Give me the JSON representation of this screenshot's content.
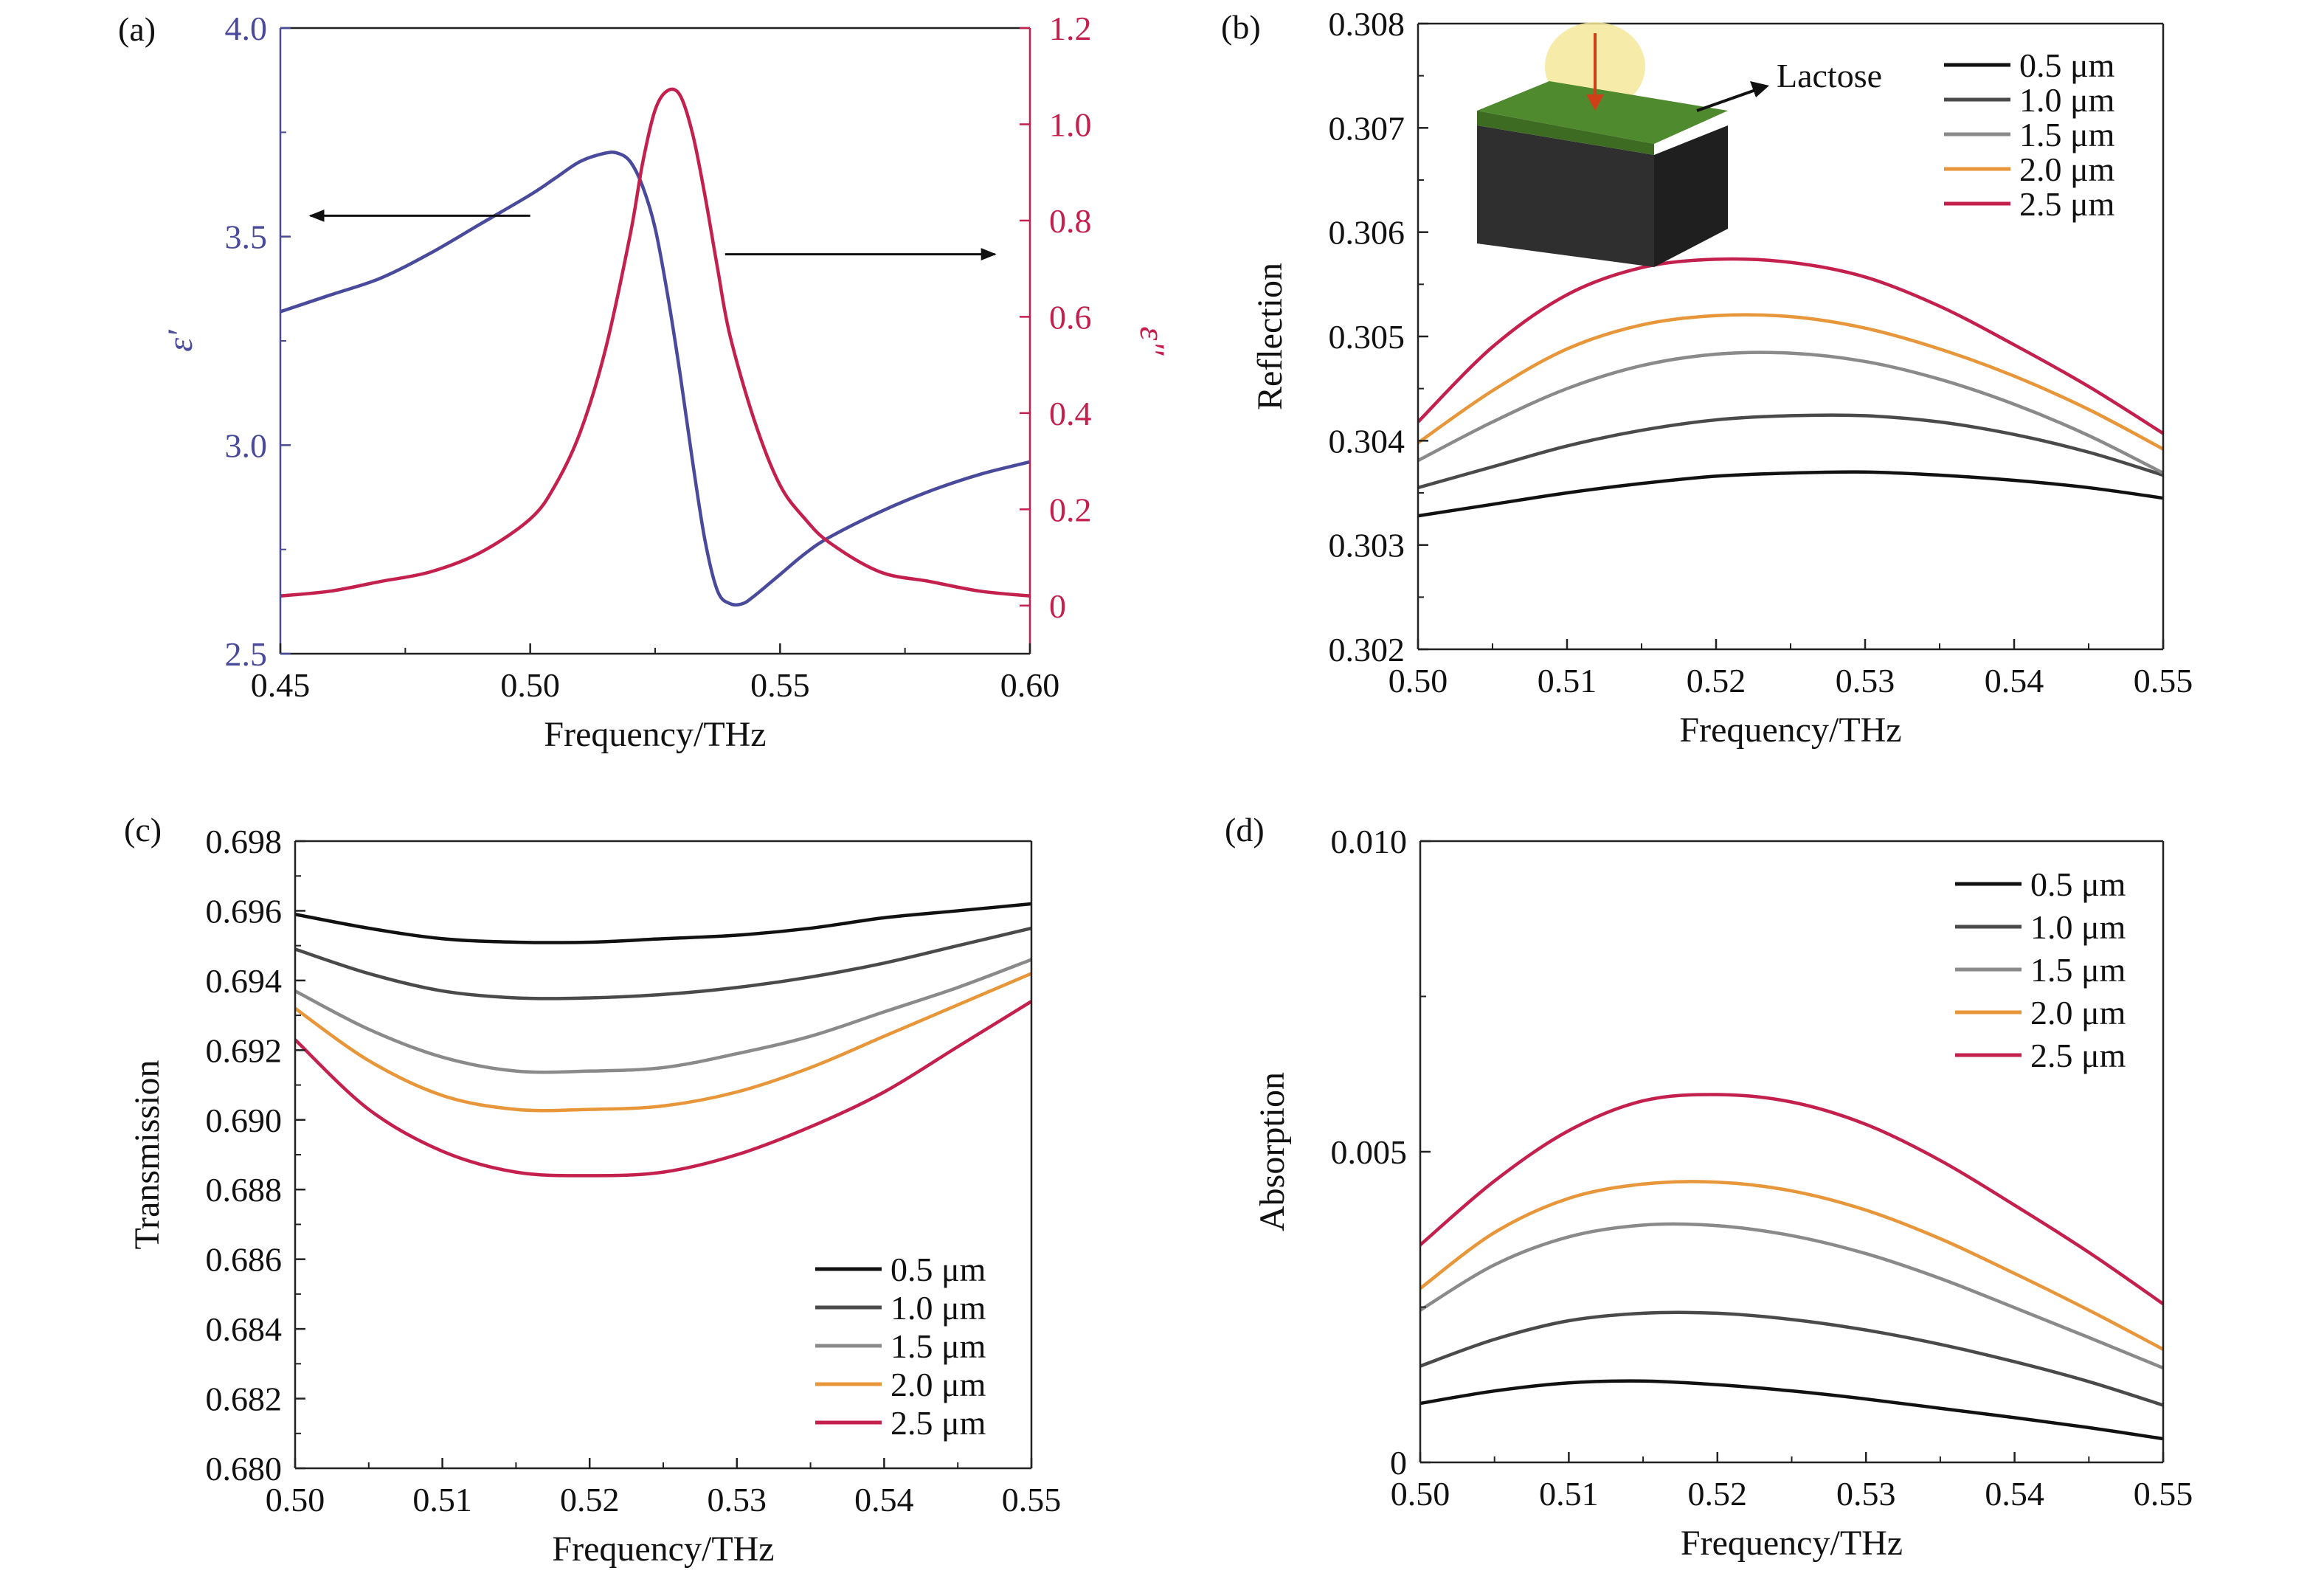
{
  "figure": {
    "colors": {
      "blue": "#4a4a9c",
      "red": "#c4204e",
      "orange": "#e8963a",
      "black": "#111111",
      "dark_gray": "#4a4a4a",
      "gray": "#8a8a8a",
      "axis": "#222222",
      "lactose_top": "#4f8a2e",
      "lactose_body": "#2f2f2f",
      "light_glow": "#f6e89a"
    }
  },
  "chart_data": [
    {
      "panel": "(a)",
      "type": "line",
      "xlabel": "Frequency/THz",
      "ylabel_left": "ε′",
      "ylabel_right": "ε″",
      "xlim": [
        0.45,
        0.6
      ],
      "ylim_left": [
        2.5,
        4.0
      ],
      "ylim_right": [
        -0.1,
        1.2
      ],
      "x_ticks": [
        "0.45",
        "0.50",
        "0.55",
        "0.60"
      ],
      "y_ticks_left": [
        "2.5",
        "3.0",
        "3.5",
        "4.0"
      ],
      "y_ticks_right": [
        "0",
        "0.2",
        "0.4",
        "0.6",
        "0.8",
        "1.0",
        "1.2"
      ],
      "series": [
        {
          "axis": "left",
          "color": "blue",
          "x": [
            0.45,
            0.46,
            0.47,
            0.48,
            0.49,
            0.5,
            0.505,
            0.51,
            0.515,
            0.5175,
            0.52,
            0.5225,
            0.525,
            0.5275,
            0.53,
            0.5325,
            0.535,
            0.5375,
            0.54,
            0.5425,
            0.545,
            0.55,
            0.555,
            0.56,
            0.57,
            0.58,
            0.59,
            0.6
          ],
          "y": [
            3.32,
            3.36,
            3.4,
            3.46,
            3.53,
            3.6,
            3.64,
            3.68,
            3.7,
            3.7,
            3.68,
            3.62,
            3.52,
            3.36,
            3.17,
            2.96,
            2.77,
            2.65,
            2.62,
            2.62,
            2.64,
            2.69,
            2.74,
            2.78,
            2.84,
            2.89,
            2.93,
            2.96
          ]
        },
        {
          "axis": "right",
          "color": "red",
          "x": [
            0.45,
            0.46,
            0.47,
            0.48,
            0.49,
            0.5,
            0.505,
            0.51,
            0.515,
            0.52,
            0.5225,
            0.525,
            0.5275,
            0.53,
            0.5325,
            0.535,
            0.5375,
            0.54,
            0.545,
            0.55,
            0.555,
            0.56,
            0.57,
            0.58,
            0.59,
            0.6
          ],
          "y": [
            0.02,
            0.03,
            0.05,
            0.07,
            0.11,
            0.18,
            0.25,
            0.36,
            0.53,
            0.77,
            0.92,
            1.03,
            1.07,
            1.06,
            0.98,
            0.85,
            0.7,
            0.56,
            0.38,
            0.25,
            0.18,
            0.13,
            0.07,
            0.05,
            0.03,
            0.02
          ]
        }
      ],
      "annotations": [
        {
          "type": "arrow-left",
          "x_from": 0.5,
          "x_to": 0.456,
          "y": 3.55,
          "axis": "left"
        },
        {
          "type": "arrow-right",
          "x_from": 0.539,
          "x_to": 0.593,
          "y": 0.73,
          "axis": "right"
        }
      ]
    },
    {
      "panel": "(b)",
      "type": "line",
      "xlabel": "Frequency/THz",
      "ylabel": "Reflection",
      "xlim": [
        0.5,
        0.55
      ],
      "ylim": [
        0.302,
        0.308
      ],
      "x_ticks": [
        "0.50",
        "0.51",
        "0.52",
        "0.53",
        "0.54",
        "0.55"
      ],
      "y_ticks": [
        "0.302",
        "0.303",
        "0.304",
        "0.305",
        "0.306",
        "0.307",
        "0.308"
      ],
      "legend": [
        "0.5 μm",
        "1.0 μm",
        "1.5 μm",
        "2.0 μm",
        "2.5 μm"
      ],
      "legend_position": "top-right",
      "inset_label": "Lactose",
      "x": [
        0.5,
        0.505,
        0.51,
        0.515,
        0.52,
        0.525,
        0.53,
        0.535,
        0.54,
        0.545,
        0.55
      ],
      "series": [
        {
          "name": "0.5 μm",
          "color": "black",
          "y": [
            0.30328,
            0.30339,
            0.3035,
            0.30359,
            0.30366,
            0.30369,
            0.3037,
            0.30367,
            0.30362,
            0.30355,
            0.30345
          ]
        },
        {
          "name": "1.0 μm",
          "color": "dark_gray",
          "y": [
            0.30355,
            0.30375,
            0.30395,
            0.3041,
            0.3042,
            0.30424,
            0.30424,
            0.30418,
            0.30406,
            0.30389,
            0.30367
          ]
        },
        {
          "name": "1.5 μm",
          "color": "gray",
          "y": [
            0.30381,
            0.30418,
            0.3045,
            0.30472,
            0.30483,
            0.30484,
            0.30476,
            0.30459,
            0.30435,
            0.30405,
            0.30369
          ]
        },
        {
          "name": "2.0 μm",
          "color": "orange",
          "y": [
            0.30398,
            0.30448,
            0.30488,
            0.30511,
            0.3052,
            0.30519,
            0.30508,
            0.30488,
            0.30462,
            0.3043,
            0.30392
          ]
        },
        {
          "name": "2.5 μm",
          "color": "red",
          "y": [
            0.30418,
            0.3049,
            0.3054,
            0.30566,
            0.30574,
            0.30571,
            0.30557,
            0.30529,
            0.30492,
            0.30452,
            0.30407
          ]
        }
      ]
    },
    {
      "panel": "(c)",
      "type": "line",
      "xlabel": "Frequency/THz",
      "ylabel": "Transmission",
      "xlim": [
        0.5,
        0.55
      ],
      "ylim": [
        0.68,
        0.698
      ],
      "x_ticks": [
        "0.50",
        "0.51",
        "0.52",
        "0.53",
        "0.54",
        "0.55"
      ],
      "y_ticks": [
        "0.680",
        "0.682",
        "0.684",
        "0.686",
        "0.688",
        "0.690",
        "0.692",
        "0.694",
        "0.696",
        "0.698"
      ],
      "legend": [
        "0.5 μm",
        "1.0 μm",
        "1.5 μm",
        "2.0 μm",
        "2.5 μm"
      ],
      "legend_position": "bottom-right",
      "x": [
        0.5,
        0.505,
        0.51,
        0.515,
        0.52,
        0.525,
        0.53,
        0.535,
        0.54,
        0.545,
        0.55
      ],
      "series": [
        {
          "name": "0.5 μm",
          "color": "black",
          "y": [
            0.6959,
            0.6955,
            0.6952,
            0.6951,
            0.6951,
            0.6952,
            0.6953,
            0.6955,
            0.6958,
            0.696,
            0.6962
          ]
        },
        {
          "name": "1.0 μm",
          "color": "dark_gray",
          "y": [
            0.6949,
            0.6942,
            0.6937,
            0.6935,
            0.6935,
            0.6936,
            0.6938,
            0.6941,
            0.6945,
            0.695,
            0.6955
          ]
        },
        {
          "name": "1.5 μm",
          "color": "gray",
          "y": [
            0.6937,
            0.6926,
            0.6918,
            0.6914,
            0.6914,
            0.6915,
            0.6919,
            0.6924,
            0.6931,
            0.6938,
            0.6946
          ]
        },
        {
          "name": "2.0 μm",
          "color": "orange",
          "y": [
            0.6932,
            0.6917,
            0.6907,
            0.6903,
            0.6903,
            0.6904,
            0.6908,
            0.6915,
            0.6924,
            0.6933,
            0.6942
          ]
        },
        {
          "name": "2.5 μm",
          "color": "red",
          "y": [
            0.6923,
            0.6903,
            0.6891,
            0.6885,
            0.6884,
            0.6885,
            0.689,
            0.6898,
            0.6908,
            0.6921,
            0.6934
          ]
        }
      ]
    },
    {
      "panel": "(d)",
      "type": "line",
      "xlabel": "Frequency/THz",
      "ylabel": "Absorption",
      "xlim": [
        0.5,
        0.55
      ],
      "ylim": [
        0,
        0.01
      ],
      "x_ticks": [
        "0.50",
        "0.51",
        "0.52",
        "0.53",
        "0.54",
        "0.55"
      ],
      "y_ticks": [
        "0",
        "0.005",
        "0.010"
      ],
      "legend": [
        "0.5 μm",
        "1.0 μm",
        "1.5 μm",
        "2.0 μm",
        "2.5 μm"
      ],
      "legend_position": "top-right",
      "x": [
        0.5,
        0.505,
        0.51,
        0.515,
        0.52,
        0.525,
        0.53,
        0.535,
        0.54,
        0.545,
        0.55
      ],
      "series": [
        {
          "name": "0.5 μm",
          "color": "black",
          "y": [
            0.00095,
            0.00115,
            0.00128,
            0.00131,
            0.00125,
            0.00115,
            0.00102,
            0.00087,
            0.00072,
            0.00056,
            0.00038
          ]
        },
        {
          "name": "1.0 μm",
          "color": "dark_gray",
          "y": [
            0.00155,
            0.00198,
            0.00228,
            0.0024,
            0.0024,
            0.0023,
            0.00213,
            0.0019,
            0.00162,
            0.0013,
            0.00092
          ]
        },
        {
          "name": "1.5 μm",
          "color": "gray",
          "y": [
            0.00245,
            0.00318,
            0.00363,
            0.00382,
            0.00381,
            0.00365,
            0.00336,
            0.00296,
            0.00249,
            0.00201,
            0.00152
          ]
        },
        {
          "name": "2.0 μm",
          "color": "orange",
          "y": [
            0.0028,
            0.0037,
            0.00425,
            0.00448,
            0.00451,
            0.00437,
            0.00406,
            0.0036,
            0.00304,
            0.00245,
            0.00182
          ]
        },
        {
          "name": "2.5 μm",
          "color": "red",
          "y": [
            0.0035,
            0.00453,
            0.00534,
            0.00582,
            0.00592,
            0.0058,
            0.00544,
            0.00486,
            0.00414,
            0.00338,
            0.00255
          ]
        }
      ]
    }
  ]
}
